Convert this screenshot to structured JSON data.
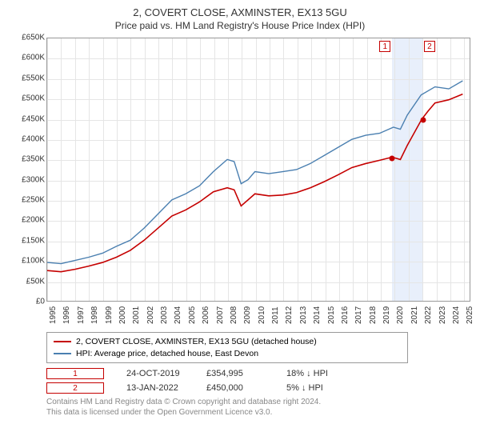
{
  "title": "2, COVERT CLOSE, AXMINSTER, EX13 5GU",
  "subtitle": "Price paid vs. HM Land Registry's House Price Index (HPI)",
  "chart": {
    "type": "line",
    "background_color": "#ffffff",
    "grid_color": "#e5e5e5",
    "border_color": "#999999",
    "ylim": [
      0,
      650000
    ],
    "ytick_step": 50000,
    "yticks": [
      "£0",
      "£50K",
      "£100K",
      "£150K",
      "£200K",
      "£250K",
      "£300K",
      "£350K",
      "£400K",
      "£450K",
      "£500K",
      "£550K",
      "£600K",
      "£650K"
    ],
    "xlim": [
      1995,
      2025.5
    ],
    "xticks": [
      1995,
      1996,
      1997,
      1998,
      1999,
      2000,
      2001,
      2002,
      2003,
      2004,
      2005,
      2006,
      2007,
      2008,
      2009,
      2010,
      2011,
      2012,
      2013,
      2014,
      2015,
      2016,
      2017,
      2018,
      2019,
      2020,
      2021,
      2022,
      2023,
      2024,
      2025
    ],
    "x_tick_fontsize": 10,
    "y_tick_fontsize": 10,
    "highlight_band": {
      "x_start": 2019.8,
      "x_end": 2022.05,
      "color": "#e8effb"
    },
    "series": [
      {
        "name": "hpi",
        "label": "HPI: Average price, detached house, East Devon",
        "color": "#4a7fb0",
        "line_width": 1.4,
        "data": [
          [
            1995,
            95000
          ],
          [
            1996,
            92000
          ],
          [
            1997,
            100000
          ],
          [
            1998,
            108000
          ],
          [
            1999,
            118000
          ],
          [
            2000,
            135000
          ],
          [
            2001,
            150000
          ],
          [
            2002,
            180000
          ],
          [
            2003,
            215000
          ],
          [
            2004,
            250000
          ],
          [
            2005,
            265000
          ],
          [
            2006,
            285000
          ],
          [
            2007,
            320000
          ],
          [
            2008,
            350000
          ],
          [
            2008.5,
            345000
          ],
          [
            2009,
            290000
          ],
          [
            2009.5,
            300000
          ],
          [
            2010,
            320000
          ],
          [
            2011,
            315000
          ],
          [
            2012,
            320000
          ],
          [
            2013,
            325000
          ],
          [
            2014,
            340000
          ],
          [
            2015,
            360000
          ],
          [
            2016,
            380000
          ],
          [
            2017,
            400000
          ],
          [
            2018,
            410000
          ],
          [
            2019,
            415000
          ],
          [
            2020,
            430000
          ],
          [
            2020.5,
            425000
          ],
          [
            2021,
            460000
          ],
          [
            2022,
            510000
          ],
          [
            2023,
            530000
          ],
          [
            2024,
            525000
          ],
          [
            2025,
            545000
          ]
        ]
      },
      {
        "name": "price_paid",
        "label": "2, COVERT CLOSE, AXMINSTER, EX13 5GU (detached house)",
        "color": "#c50000",
        "line_width": 1.6,
        "data": [
          [
            1995,
            75000
          ],
          [
            1996,
            72000
          ],
          [
            1997,
            78000
          ],
          [
            1998,
            86000
          ],
          [
            1999,
            95000
          ],
          [
            2000,
            108000
          ],
          [
            2001,
            125000
          ],
          [
            2002,
            150000
          ],
          [
            2003,
            180000
          ],
          [
            2004,
            210000
          ],
          [
            2005,
            225000
          ],
          [
            2006,
            245000
          ],
          [
            2007,
            270000
          ],
          [
            2008,
            280000
          ],
          [
            2008.5,
            275000
          ],
          [
            2009,
            235000
          ],
          [
            2009.5,
            250000
          ],
          [
            2010,
            265000
          ],
          [
            2011,
            260000
          ],
          [
            2012,
            262000
          ],
          [
            2013,
            268000
          ],
          [
            2014,
            280000
          ],
          [
            2015,
            295000
          ],
          [
            2016,
            312000
          ],
          [
            2017,
            330000
          ],
          [
            2018,
            340000
          ],
          [
            2019,
            348000
          ],
          [
            2019.8,
            354995
          ],
          [
            2020,
            355000
          ],
          [
            2020.5,
            350000
          ],
          [
            2021,
            385000
          ],
          [
            2022.05,
            450000
          ],
          [
            2022.5,
            470000
          ],
          [
            2023,
            490000
          ],
          [
            2024,
            498000
          ],
          [
            2025,
            512000
          ]
        ]
      }
    ],
    "sale_points": [
      {
        "marker": "1",
        "x": 2019.8,
        "y": 354995
      },
      {
        "marker": "2",
        "x": 2022.05,
        "y": 450000
      }
    ],
    "marker_box_color": "#c50000",
    "marker_chart": [
      {
        "marker": "1",
        "x": 2019.3
      },
      {
        "marker": "2",
        "x": 2022.5
      }
    ]
  },
  "legend": {
    "items": [
      {
        "color": "#c50000",
        "label": "2, COVERT CLOSE, AXMINSTER, EX13 5GU (detached house)"
      },
      {
        "color": "#4a7fb0",
        "label": "HPI: Average price, detached house, East Devon"
      }
    ]
  },
  "sales": [
    {
      "marker": "1",
      "date": "24-OCT-2019",
      "price": "£354,995",
      "diff": "18% ↓ HPI"
    },
    {
      "marker": "2",
      "date": "13-JAN-2022",
      "price": "£450,000",
      "diff": "5% ↓ HPI"
    }
  ],
  "footer": {
    "line1": "Contains HM Land Registry data © Crown copyright and database right 2024.",
    "line2": "This data is licensed under the Open Government Licence v3.0."
  }
}
